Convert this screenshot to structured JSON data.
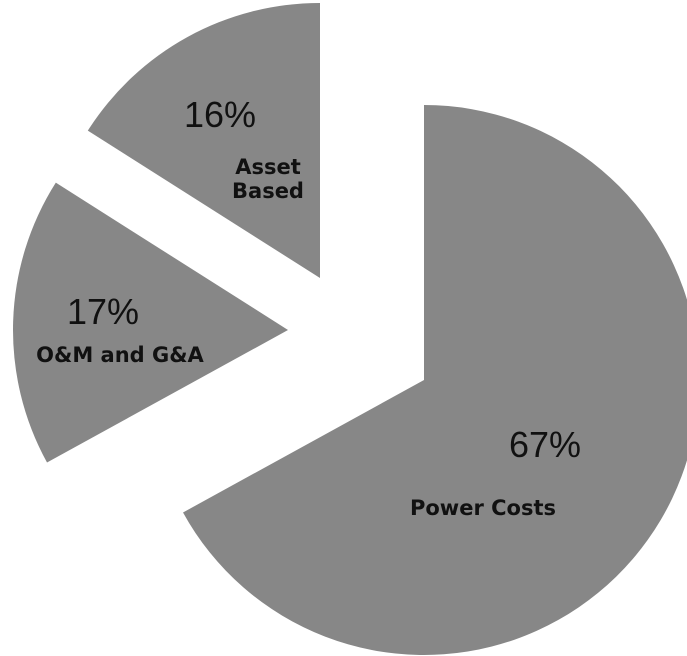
{
  "chart_data": {
    "type": "pie",
    "categories": [
      "Power Costs",
      "O&M and G&A",
      "Asset Based"
    ],
    "values": [
      67,
      17,
      16
    ],
    "value_labels": [
      "67%",
      "17%",
      "16%"
    ],
    "color": "#878787"
  }
}
